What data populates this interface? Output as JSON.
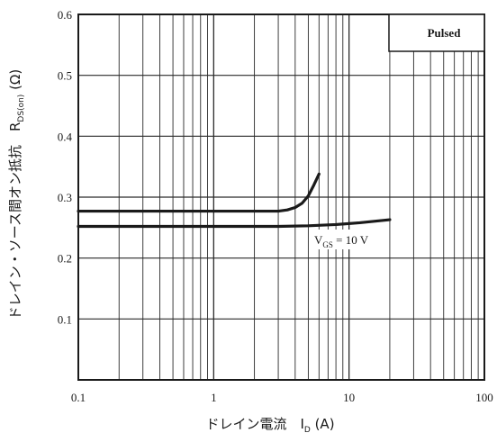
{
  "chart_data": {
    "type": "line",
    "x_scale": "log",
    "xlim": [
      0.1,
      100
    ],
    "ylim": [
      0,
      0.6
    ],
    "x_ticks": [
      {
        "value": 0.1,
        "label": "0.1"
      },
      {
        "value": 1,
        "label": "1"
      },
      {
        "value": 10,
        "label": "10"
      },
      {
        "value": 100,
        "label": "100"
      }
    ],
    "y_ticks": [
      {
        "value": 0.1,
        "label": "0.1"
      },
      {
        "value": 0.2,
        "label": "0.2"
      },
      {
        "value": 0.3,
        "label": "0.3"
      },
      {
        "value": 0.4,
        "label": "0.4"
      },
      {
        "value": 0.5,
        "label": "0.5"
      },
      {
        "value": 0.6,
        "label": "0.6"
      }
    ],
    "xlabel": {
      "main": "ドレイン電流　I",
      "sub": "D",
      "unit": " (A)"
    },
    "ylabel": {
      "main": "ドレイン・ソース間オン抵抗　R",
      "sub": "DS(on)",
      "unit": " (Ω)"
    },
    "legend_box": "Pulsed",
    "annotation": {
      "main": "V",
      "sub": "GS",
      "rest": " = 10 V"
    },
    "grid": true,
    "series": [
      {
        "points": [
          [
            0.1,
            0.277
          ],
          [
            1,
            0.277
          ],
          [
            3,
            0.277
          ],
          [
            3.5,
            0.279
          ],
          [
            4,
            0.283
          ],
          [
            4.5,
            0.29
          ],
          [
            5,
            0.302
          ],
          [
            5.5,
            0.32
          ],
          [
            6,
            0.338
          ]
        ]
      },
      {
        "points": [
          [
            0.1,
            0.252
          ],
          [
            1,
            0.252
          ],
          [
            3,
            0.252
          ],
          [
            5,
            0.253
          ],
          [
            8,
            0.255
          ],
          [
            12,
            0.258
          ],
          [
            20,
            0.263
          ]
        ]
      }
    ]
  }
}
